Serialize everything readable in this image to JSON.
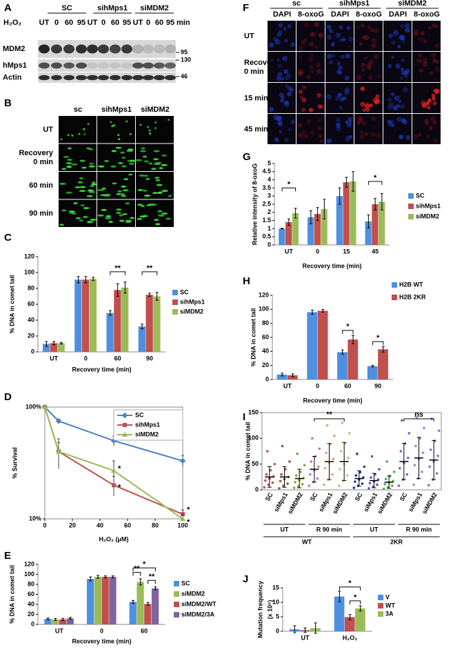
{
  "blot": {
    "letter": "A",
    "groups": [
      "SC",
      "sihMps1",
      "siMDM2"
    ],
    "treatment": "H₂O₂",
    "lanes": [
      "UT",
      "0",
      "60",
      "95",
      "UT",
      "0",
      "60",
      "95",
      "UT",
      "0",
      "60",
      "95"
    ],
    "unit": "min",
    "rows": [
      "MDM2",
      "hMps1",
      "Actin"
    ],
    "markers": [
      "95",
      "130",
      "46"
    ]
  },
  "comet_images": {
    "letter": "B",
    "columns": [
      "sc",
      "sihMps1",
      "siMDM2"
    ],
    "rows": [
      [
        "UT"
      ],
      [
        "Recovery",
        "0 min"
      ],
      [
        "60 min"
      ],
      [
        "90 min"
      ]
    ]
  },
  "if_images": {
    "letter": "F",
    "groups": [
      "sc",
      "sihMps1",
      "siMDM2"
    ],
    "stains": [
      "DAPI",
      "8-oxoG",
      "DAPI",
      "8-oxoG",
      "DAPI",
      "8-oxoG"
    ],
    "rows": [
      [
        "UT"
      ],
      [
        "Recovery",
        "0 min"
      ],
      [
        "15 min"
      ],
      [
        "45 min"
      ]
    ]
  },
  "chart_data": [
    {
      "letter": "C",
      "type": "bar",
      "ylabel": "% DNA in comet tail",
      "xlabel": "Recovery time (min)",
      "categories": [
        "UT",
        "0",
        "60",
        "90"
      ],
      "series": [
        {
          "name": "SC",
          "color": "#4f8fe0",
          "values": [
            10,
            91,
            49,
            32
          ],
          "errors": [
            3,
            4,
            3,
            3
          ]
        },
        {
          "name": "sihMps1",
          "color": "#c0504d",
          "values": [
            11,
            91,
            78,
            72
          ],
          "errors": [
            2,
            4,
            8,
            2
          ]
        },
        {
          "name": "siMDM2",
          "color": "#9bbb59",
          "values": [
            11,
            92,
            81,
            70
          ],
          "errors": [
            1,
            2,
            7,
            5
          ]
        }
      ],
      "ylim": [
        0,
        120
      ],
      "yticks": [
        0,
        20,
        40,
        60,
        80,
        100,
        120
      ],
      "annotations": [
        "**",
        "**"
      ]
    },
    {
      "letter": "D",
      "type": "line",
      "ylabel": "% Survival",
      "xlabel": "H₂O₂ (μM)",
      "log": true,
      "series": [
        {
          "name": "SC",
          "color": "#4f81bd",
          "x": [
            0,
            10,
            50,
            100
          ],
          "values": [
            100,
            75,
            50,
            33
          ],
          "errors": [
            0,
            3,
            5,
            4
          ]
        },
        {
          "name": "sihMps1",
          "color": "#c0504d",
          "x": [
            0,
            10,
            50,
            100
          ],
          "values": [
            100,
            40,
            20,
            11
          ],
          "errors": [
            0,
            12,
            4,
            1
          ]
        },
        {
          "name": "siMDM2",
          "color": "#9bbb59",
          "x": [
            0,
            10,
            50,
            100
          ],
          "values": [
            100,
            40,
            27,
            10
          ],
          "errors": [
            0,
            8,
            6,
            1
          ]
        }
      ],
      "xlim": [
        0,
        100
      ],
      "xticks": [
        0,
        20,
        40,
        60,
        80,
        100
      ],
      "ylim": [
        10,
        100
      ],
      "yticks": [
        {
          "value": 10,
          "label": "10%"
        },
        {
          "value": 100,
          "label": "100%"
        }
      ],
      "annotations": [
        "*",
        "*",
        "*",
        "*"
      ]
    },
    {
      "letter": "E",
      "type": "bar",
      "ylabel": "% DNA in comet tail",
      "xlabel": "Recovery time (min)",
      "categories": [
        "UT",
        "0",
        "60"
      ],
      "series": [
        {
          "name": "SC",
          "color": "#4f8fe0",
          "values": [
            11,
            91,
            45
          ],
          "errors": [
            2,
            4,
            3
          ]
        },
        {
          "name": "siMDM2",
          "color": "#9bbb59",
          "values": [
            10,
            95,
            85
          ],
          "errors": [
            2,
            3,
            6
          ]
        },
        {
          "name": "siMDM2/WT",
          "color": "#c0504d",
          "values": [
            10,
            95,
            41
          ],
          "errors": [
            2,
            2,
            3
          ]
        },
        {
          "name": "siMDM2/3A",
          "color": "#8064a2",
          "values": [
            12,
            95,
            72
          ],
          "errors": [
            2,
            2,
            3
          ]
        }
      ],
      "ylim": [
        0,
        120
      ],
      "yticks": [
        0,
        20,
        40,
        60,
        80,
        100,
        120
      ],
      "annotations": [
        "**",
        "*",
        "**"
      ]
    },
    {
      "letter": "G",
      "type": "bar",
      "ylabel": "Relative intensity of 8-oxoG",
      "xlabel": "Recovery time (min)",
      "categories": [
        "UT",
        "0",
        "15",
        "45"
      ],
      "series": [
        {
          "name": "SC",
          "color": "#4f8fe0",
          "values": [
            1,
            1.7,
            3,
            1.45
          ],
          "errors": [
            0.02,
            0.4,
            0.5,
            0.4
          ]
        },
        {
          "name": "sihMps1",
          "color": "#c0504d",
          "values": [
            1.4,
            1.9,
            3.85,
            2.5
          ],
          "errors": [
            0.2,
            0.4,
            0.3,
            0.35
          ]
        },
        {
          "name": "siMDM2",
          "color": "#9bbb59",
          "values": [
            1.95,
            2.2,
            3.9,
            2.65
          ],
          "errors": [
            0.3,
            0.6,
            0.6,
            0.5
          ]
        }
      ],
      "ylim": [
        0,
        5
      ],
      "yticks": [
        0,
        0.5,
        1,
        1.5,
        2,
        2.5,
        3,
        3.5,
        4,
        4.5,
        5
      ],
      "annotations": [
        "*",
        "*"
      ]
    },
    {
      "letter": "H",
      "type": "bar",
      "ylabel": "% DNA in comet tail",
      "xlabel": "Recovery time (min)",
      "categories": [
        "UT",
        "0",
        "60",
        "90"
      ],
      "series": [
        {
          "name": "H2B WT",
          "color": "#4f8fe0",
          "values": [
            7,
            96,
            39,
            19
          ],
          "errors": [
            2,
            3,
            3,
            1
          ]
        },
        {
          "name": "H2B 2KR",
          "color": "#c0504d",
          "values": [
            6,
            98,
            57,
            43
          ],
          "errors": [
            2,
            2,
            6,
            4
          ]
        }
      ],
      "ylim": [
        0,
        120
      ],
      "yticks": [
        0,
        20,
        40,
        60,
        80,
        100,
        120
      ],
      "annotations": [
        "*",
        "*"
      ]
    },
    {
      "letter": "I",
      "type": "dot",
      "ylabel": "% DNA in comet tail",
      "categories": [
        "SC",
        "siMps1",
        "siMDM2",
        "SC",
        "siMps1",
        "siMDM2",
        "SC",
        "siMps1",
        "siMDM2",
        "SC",
        "siMps1",
        "siMDM2"
      ],
      "conditions": [
        "UT",
        "R 90 min",
        "UT",
        "R 90 min"
      ],
      "lines": [
        "WT",
        "2KR"
      ],
      "colors": [
        "#c0504d",
        "#a0522d",
        "#8aa040",
        "#d070b0",
        "#e8a070",
        "#a8d070",
        "#1f3b8c",
        "#5a4fc0",
        "#4caf50",
        "#7b5fc8",
        "#9a86d8",
        "#8c6bd0"
      ],
      "points": [
        [
          5,
          10,
          14,
          18,
          22,
          26,
          30,
          38,
          50,
          75
        ],
        [
          3,
          8,
          12,
          17,
          21,
          25,
          30,
          40,
          55,
          85
        ],
        [
          4,
          7,
          11,
          15,
          19,
          23,
          28,
          35,
          48,
          70
        ],
        [
          8,
          15,
          22,
          30,
          38,
          45,
          55,
          65,
          80,
          100
        ],
        [
          10,
          20,
          30,
          42,
          52,
          60,
          72,
          88,
          105,
          125
        ],
        [
          8,
          18,
          28,
          40,
          50,
          62,
          75,
          90,
          110,
          130
        ],
        [
          4,
          8,
          12,
          16,
          20,
          24,
          28,
          34,
          45,
          70
        ],
        [
          3,
          6,
          10,
          13,
          16,
          20,
          24,
          30,
          40,
          65
        ],
        [
          2,
          5,
          8,
          11,
          14,
          17,
          21,
          27,
          35,
          55
        ],
        [
          8,
          20,
          30,
          42,
          52,
          62,
          75,
          90,
          110,
          135
        ],
        [
          10,
          22,
          35,
          48,
          60,
          72,
          85,
          100,
          120,
          140
        ],
        [
          9,
          20,
          32,
          45,
          55,
          66,
          78,
          95,
          115,
          138
        ]
      ],
      "means": [
        25,
        25,
        22,
        40,
        55,
        55,
        22,
        18,
        15,
        55,
        62,
        58
      ],
      "sds": [
        20,
        20,
        18,
        25,
        35,
        37,
        15,
        14,
        12,
        35,
        40,
        38
      ],
      "ylim": [
        0,
        150
      ],
      "yticks": [
        0,
        50,
        100,
        150
      ],
      "annotations": [
        "**",
        "ns"
      ]
    },
    {
      "letter": "J",
      "type": "bar",
      "ylabel": "Mutation frequency",
      "ylabel2": "(x 10⁶)",
      "categories": [
        "UT",
        "H₂O₂"
      ],
      "series": [
        {
          "name": "V",
          "color": "#4f8fe0",
          "values": [
            0.7,
            12
          ],
          "errors": [
            1.2,
            1.8
          ]
        },
        {
          "name": "WT",
          "color": "#c0504d",
          "values": [
            0.4,
            4.9
          ],
          "errors": [
            0.8,
            0.9
          ]
        },
        {
          "name": "3A",
          "color": "#9bbb59",
          "values": [
            1.1,
            7.9
          ],
          "errors": [
            1.8,
            0.9
          ]
        }
      ],
      "ylim": [
        0,
        15
      ],
      "yticks": [
        0,
        5,
        10,
        15
      ],
      "annotations": [
        "*",
        "*"
      ]
    }
  ]
}
